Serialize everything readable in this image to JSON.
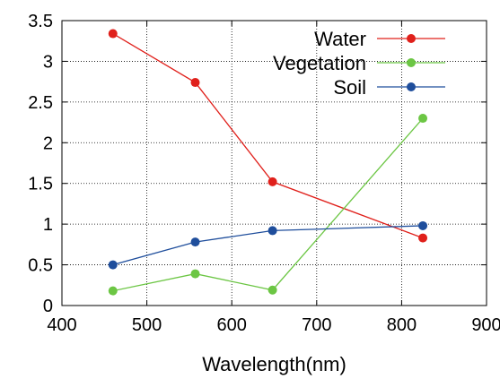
{
  "chart_data": {
    "type": "line",
    "title": "",
    "xlabel": "Wavelength(nm)",
    "ylabel": "",
    "xlim": [
      400,
      900
    ],
    "ylim": [
      0,
      3.5
    ],
    "xticks": [
      400,
      500,
      600,
      700,
      800,
      900
    ],
    "yticks": [
      0,
      0.5,
      1,
      1.5,
      2,
      2.5,
      3,
      3.5
    ],
    "xtick_labels": [
      "400",
      "500",
      "600",
      "700",
      "800",
      "900"
    ],
    "ytick_labels": [
      "0",
      "0.5",
      "1",
      "1.5",
      "2",
      "2.5",
      "3",
      "3.5"
    ],
    "grid": true,
    "legend_position": "top-right",
    "series": [
      {
        "name": "Water",
        "color": "#e0201b",
        "x": [
          460,
          557,
          648,
          825
        ],
        "y": [
          3.34,
          2.74,
          1.52,
          0.83
        ]
      },
      {
        "name": "Vegetation",
        "color": "#6cc644",
        "x": [
          460,
          557,
          648,
          825
        ],
        "y": [
          0.18,
          0.39,
          0.19,
          2.3
        ]
      },
      {
        "name": "Soil",
        "color": "#1f4e9c",
        "x": [
          460,
          557,
          648,
          825
        ],
        "y": [
          0.5,
          0.78,
          0.92,
          0.98
        ]
      }
    ]
  }
}
